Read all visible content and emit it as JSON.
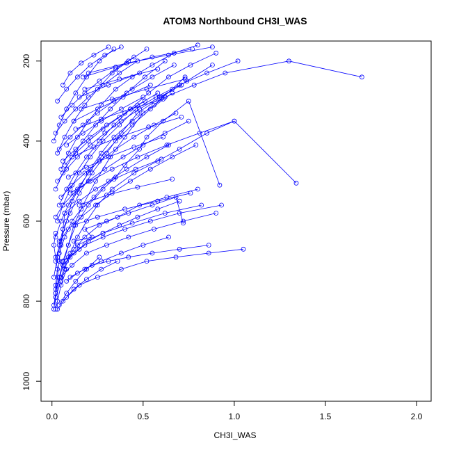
{
  "chart_data": {
    "type": "line",
    "title": "ATOM3 Northbound CH3I_WAS",
    "xlabel": "CH3I_WAS",
    "ylabel": "Pressure (mbar)",
    "xlim": [
      -0.06,
      2.08
    ],
    "ylim": [
      1050,
      150
    ],
    "y_reversed": true,
    "x_ticks": [
      0.0,
      0.5,
      1.0,
      1.5,
      2.0
    ],
    "x_tick_labels": [
      "0.0",
      "0.5",
      "1.0",
      "1.5",
      "2.0"
    ],
    "y_ticks": [
      200,
      400,
      600,
      800,
      1000
    ],
    "y_tick_labels": [
      "200",
      "400",
      "600",
      "800",
      "1000"
    ],
    "grid": false,
    "legend": "none",
    "series_color": "#0000ff",
    "marker": "open-circle",
    "note": "",
    "series": [
      {
        "name": "",
        "x": [
          0.02,
          0.03,
          0.05,
          0.08,
          0.04,
          0.1,
          0.15,
          0.12,
          0.22,
          0.18,
          0.3,
          0.42,
          0.55,
          0.68,
          0.72
        ],
        "y": [
          820,
          800,
          760,
          720,
          700,
          690,
          670,
          650,
          640,
          620,
          600,
          580,
          560,
          540,
          605
        ]
      },
      {
        "name": "",
        "x": [
          0.01,
          0.02,
          0.04,
          0.06,
          0.09,
          0.13,
          0.2,
          0.28,
          0.35,
          0.4,
          0.48,
          0.52,
          0.61,
          0.75,
          0.92
        ],
        "y": [
          810,
          780,
          740,
          700,
          660,
          610,
          560,
          520,
          490,
          460,
          420,
          390,
          350,
          300,
          510
        ]
      },
      {
        "name": "",
        "x": [
          0.02,
          0.05,
          0.07,
          0.1,
          0.14,
          0.19,
          0.25,
          0.33,
          0.45,
          0.58,
          0.7,
          0.85,
          1.0,
          1.34
        ],
        "y": [
          790,
          750,
          720,
          680,
          640,
          600,
          560,
          520,
          480,
          450,
          420,
          380,
          350,
          505
        ]
      },
      {
        "name": "",
        "x": [
          0.03,
          0.06,
          0.09,
          0.12,
          0.17,
          0.24,
          0.32,
          0.4,
          0.5,
          0.62,
          0.78,
          0.95,
          1.3,
          1.7
        ],
        "y": [
          760,
          710,
          660,
          610,
          560,
          500,
          440,
          390,
          330,
          290,
          260,
          230,
          200,
          240
        ]
      },
      {
        "name": "",
        "x": [
          0.01,
          0.03,
          0.05,
          0.08,
          0.11,
          0.16,
          0.21,
          0.27,
          0.34,
          0.44,
          0.56,
          0.66,
          0.73
        ],
        "y": [
          740,
          690,
          650,
          600,
          550,
          510,
          470,
          430,
          390,
          350,
          310,
          270,
          240
        ]
      },
      {
        "name": "",
        "x": [
          0.02,
          0.04,
          0.06,
          0.1,
          0.15,
          0.22,
          0.3,
          0.38,
          0.47,
          0.6,
          0.74,
          0.88
        ],
        "y": [
          700,
          660,
          620,
          580,
          530,
          480,
          430,
          380,
          330,
          290,
          250,
          210
        ]
      },
      {
        "name": "",
        "x": [
          0.05,
          0.08,
          0.12,
          0.18,
          0.26,
          0.36,
          0.48,
          0.63,
          0.8
        ],
        "y": [
          740,
          700,
          670,
          640,
          610,
          590,
          560,
          540,
          520
        ]
      },
      {
        "name": "",
        "x": [
          0.04,
          0.07,
          0.11,
          0.16,
          0.23,
          0.31,
          0.41,
          0.52,
          0.64
        ],
        "y": [
          680,
          640,
          600,
          570,
          540,
          500,
          470,
          440,
          410
        ]
      },
      {
        "name": "",
        "x": [
          0.02,
          0.05,
          0.09,
          0.14,
          0.2,
          0.27,
          0.35,
          0.44,
          0.54,
          0.66
        ],
        "y": [
          640,
          600,
          560,
          520,
          480,
          440,
          400,
          360,
          320,
          280
        ]
      },
      {
        "name": "",
        "x": [
          0.03,
          0.06,
          0.1,
          0.15,
          0.21,
          0.28,
          0.37,
          0.46,
          0.57,
          0.7,
          0.85,
          1.02
        ],
        "y": [
          600,
          560,
          520,
          480,
          440,
          400,
          360,
          320,
          290,
          260,
          230,
          200
        ]
      },
      {
        "name": "",
        "x": [
          0.04,
          0.08,
          0.13,
          0.19,
          0.26,
          0.34,
          0.43,
          0.53,
          0.64,
          0.76,
          0.9
        ],
        "y": [
          560,
          520,
          480,
          440,
          400,
          360,
          320,
          280,
          240,
          210,
          180
        ]
      },
      {
        "name": "",
        "x": [
          0.02,
          0.06,
          0.11,
          0.17,
          0.24,
          0.32,
          0.41,
          0.51,
          0.62
        ],
        "y": [
          520,
          480,
          440,
          400,
          360,
          320,
          280,
          240,
          200
        ]
      },
      {
        "name": "",
        "x": [
          0.05,
          0.09,
          0.14,
          0.2,
          0.27,
          0.35,
          0.44,
          0.55,
          0.67,
          0.8
        ],
        "y": [
          470,
          430,
          390,
          350,
          310,
          270,
          240,
          210,
          180,
          160
        ]
      },
      {
        "name": "",
        "x": [
          0.03,
          0.07,
          0.12,
          0.18,
          0.25,
          0.33,
          0.42,
          0.52
        ],
        "y": [
          430,
          390,
          350,
          310,
          270,
          230,
          200,
          170
        ]
      },
      {
        "name": "",
        "x": [
          0.01,
          0.04,
          0.08,
          0.13,
          0.19,
          0.26,
          0.34
        ],
        "y": [
          400,
          360,
          320,
          280,
          240,
          200,
          170
        ]
      },
      {
        "name": "",
        "x": [
          0.03,
          0.08,
          0.15,
          0.25,
          0.38,
          0.52,
          0.68,
          0.86,
          1.05
        ],
        "y": [
          820,
          790,
          760,
          740,
          720,
          700,
          690,
          680,
          670
        ]
      },
      {
        "name": "",
        "x": [
          0.02,
          0.05,
          0.11,
          0.19,
          0.3,
          0.42,
          0.56,
          0.72,
          0.9
        ],
        "y": [
          770,
          740,
          710,
          680,
          660,
          640,
          620,
          600,
          580
        ]
      },
      {
        "name": "",
        "x": [
          0.06,
          0.12,
          0.2,
          0.28,
          0.37,
          0.47,
          0.58,
          0.7
        ],
        "y": [
          710,
          680,
          650,
          630,
          610,
          590,
          570,
          550
        ]
      },
      {
        "name": "",
        "x": [
          0.04,
          0.09,
          0.16,
          0.24,
          0.33,
          0.43,
          0.54,
          0.66,
          0.79
        ],
        "y": [
          650,
          620,
          590,
          560,
          530,
          500,
          470,
          440,
          410
        ]
      },
      {
        "name": "",
        "x": [
          0.02,
          0.06,
          0.12,
          0.2,
          0.29,
          0.39,
          0.5,
          0.62,
          0.75
        ],
        "y": [
          590,
          560,
          530,
          500,
          470,
          440,
          410,
          380,
          350
        ]
      },
      {
        "name": "",
        "x": [
          0.05,
          0.11,
          0.18,
          0.26,
          0.35,
          0.45,
          0.56,
          0.68
        ],
        "y": [
          540,
          510,
          480,
          450,
          420,
          390,
          360,
          330
        ]
      },
      {
        "name": "",
        "x": [
          0.03,
          0.08,
          0.14,
          0.21,
          0.29,
          0.38,
          0.48,
          0.59,
          0.71
        ],
        "y": [
          500,
          470,
          440,
          410,
          380,
          350,
          320,
          290,
          260
        ]
      },
      {
        "name": "",
        "x": [
          0.07,
          0.13,
          0.2,
          0.28,
          0.37,
          0.47,
          0.58
        ],
        "y": [
          460,
          430,
          400,
          370,
          340,
          310,
          280
        ]
      },
      {
        "name": "",
        "x": [
          0.04,
          0.1,
          0.17,
          0.25,
          0.34,
          0.44,
          0.55,
          0.67
        ],
        "y": [
          420,
          390,
          360,
          330,
          300,
          270,
          240,
          210
        ]
      },
      {
        "name": "",
        "x": [
          0.02,
          0.07,
          0.13,
          0.2,
          0.28,
          0.37,
          0.47
        ],
        "y": [
          380,
          350,
          320,
          290,
          260,
          230,
          200
        ]
      },
      {
        "name": "",
        "x": [
          0.05,
          0.11,
          0.18,
          0.26,
          0.35,
          0.45
        ],
        "y": [
          340,
          310,
          280,
          250,
          220,
          190
        ]
      },
      {
        "name": "",
        "x": [
          0.03,
          0.08,
          0.14,
          0.21,
          0.29,
          0.38
        ],
        "y": [
          300,
          270,
          240,
          210,
          185,
          165
        ]
      },
      {
        "name": "",
        "x": [
          0.06,
          0.1,
          0.16,
          0.23,
          0.31
        ],
        "y": [
          260,
          230,
          205,
          185,
          165
        ]
      },
      {
        "name": "",
        "x": [
          0.08,
          0.14,
          0.22,
          0.31,
          0.42,
          0.55,
          0.7,
          0.86
        ],
        "y": [
          750,
          730,
          710,
          700,
          690,
          680,
          670,
          660
        ]
      },
      {
        "name": "",
        "x": [
          0.1,
          0.18,
          0.27,
          0.38,
          0.5,
          0.64
        ],
        "y": [
          740,
          720,
          700,
          680,
          660,
          640
        ]
      },
      {
        "name": "",
        "x": [
          0.01,
          0.02,
          0.02,
          0.03,
          0.02,
          0.01,
          0.02
        ],
        "y": [
          820,
          790,
          760,
          720,
          690,
          660,
          630
        ]
      },
      {
        "name": "",
        "x": [
          0.02,
          0.03,
          0.04,
          0.05,
          0.06,
          0.07
        ],
        "y": [
          780,
          740,
          700,
          660,
          620,
          580
        ]
      },
      {
        "name": "",
        "x": [
          0.12,
          0.25,
          0.4,
          0.58,
          0.76
        ],
        "y": [
          610,
          590,
          570,
          550,
          530
        ]
      },
      {
        "name": "",
        "x": [
          0.15,
          0.3,
          0.47,
          0.66
        ],
        "y": [
          560,
          535,
          515,
          495
        ]
      },
      {
        "name": "",
        "x": [
          0.09,
          0.19,
          0.31,
          0.45,
          0.61
        ],
        "y": [
          490,
          465,
          440,
          415,
          390
        ]
      },
      {
        "name": "",
        "x": [
          0.11,
          0.23,
          0.37,
          0.53,
          0.71
        ],
        "y": [
          440,
          415,
          390,
          365,
          340
        ]
      },
      {
        "name": "",
        "x": [
          0.13,
          0.27,
          0.43,
          0.61
        ],
        "y": [
          370,
          345,
          320,
          295
        ]
      },
      {
        "name": "",
        "x": [
          0.16,
          0.33,
          0.52,
          0.73
        ],
        "y": [
          320,
          295,
          270,
          245
        ]
      },
      {
        "name": "",
        "x": [
          0.18,
          0.37,
          0.58
        ],
        "y": [
          270,
          245,
          220
        ]
      },
      {
        "name": "",
        "x": [
          0.2,
          0.41,
          0.64,
          0.88
        ],
        "y": [
          230,
          205,
          185,
          165
        ]
      },
      {
        "name": "",
        "x": [
          0.09,
          0.18,
          0.28,
          0.4,
          0.54,
          0.7,
          0.93
        ],
        "y": [
          690,
          660,
          640,
          620,
          600,
          580,
          560
        ]
      },
      {
        "name": "",
        "x": [
          0.14,
          0.28,
          0.44,
          0.62,
          0.82
        ],
        "y": [
          660,
          630,
          605,
          580,
          560
        ]
      },
      {
        "name": "",
        "x": [
          0.07,
          0.15,
          0.24,
          0.34,
          0.46,
          0.6
        ],
        "y": [
          580,
          550,
          520,
          495,
          470,
          445
        ]
      },
      {
        "name": "",
        "x": [
          0.1,
          0.21,
          0.33,
          0.47,
          0.63,
          0.81,
          1.0
        ],
        "y": [
          530,
          500,
          470,
          440,
          410,
          380,
          350
        ]
      },
      {
        "name": "",
        "x": [
          0.06,
          0.13,
          0.21,
          0.3,
          0.4,
          0.51
        ],
        "y": [
          450,
          420,
          390,
          360,
          330,
          300
        ]
      },
      {
        "name": "",
        "x": [
          0.08,
          0.17,
          0.27,
          0.38,
          0.5
        ],
        "y": [
          410,
          380,
          350,
          320,
          290
        ]
      },
      {
        "name": "",
        "x": [
          0.12,
          0.25,
          0.39,
          0.54
        ],
        "y": [
          350,
          320,
          290,
          260
        ]
      },
      {
        "name": "",
        "x": [
          0.15,
          0.31,
          0.48
        ],
        "y": [
          290,
          260,
          230
        ]
      },
      {
        "name": "",
        "x": [
          0.17,
          0.35,
          0.55,
          0.77
        ],
        "y": [
          240,
          215,
          190,
          170
        ]
      },
      {
        "name": "",
        "x": [
          0.04,
          0.08,
          0.13,
          0.19,
          0.26
        ],
        "y": [
          810,
          780,
          750,
          720,
          690
        ]
      },
      {
        "name": "",
        "x": [
          0.06,
          0.12,
          0.19,
          0.27,
          0.36
        ],
        "y": [
          800,
          770,
          745,
          720,
          700
        ]
      }
    ]
  }
}
